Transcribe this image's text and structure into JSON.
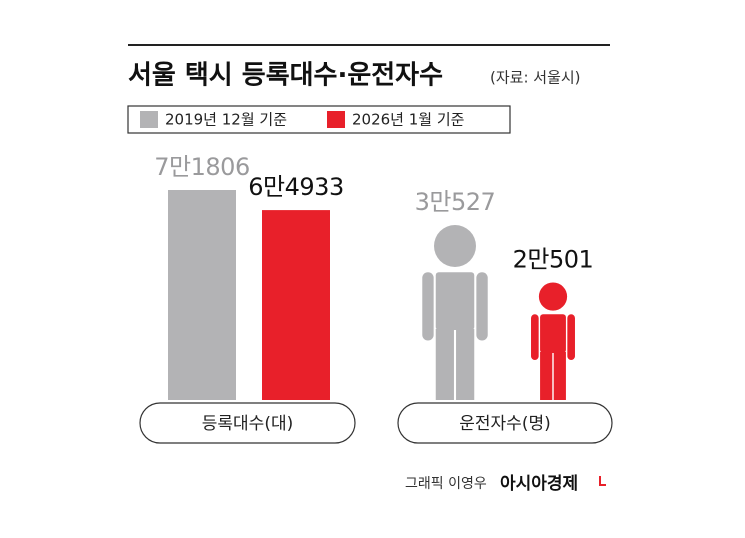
{
  "title": "서울 택시 등록대수·운전자수",
  "source": "(자료: 서울시)",
  "credit": "그래픽 이영우",
  "brand": "아시아경제",
  "chart_data": [
    {
      "type": "bar",
      "categories": [
        "등록대수(대)"
      ],
      "series": [
        {
          "name": "2019년 12월 기준",
          "color": "#b3b3b5",
          "values": [
            71806
          ],
          "value_labels": [
            "7만1806"
          ]
        },
        {
          "name": "2026년 1월 기준",
          "color": "#e8202a",
          "values": [
            64933
          ],
          "value_labels": [
            "6만4933"
          ]
        }
      ]
    },
    {
      "type": "pictogram",
      "categories": [
        "운전자수(명)"
      ],
      "series": [
        {
          "name": "2019년 12월 기준",
          "color": "#b3b3b5",
          "values": [
            30527
          ],
          "value_labels": [
            "3만527"
          ]
        },
        {
          "name": "2026년 1월 기준",
          "color": "#e8202a",
          "values": [
            20501
          ],
          "value_labels": [
            "2만501"
          ]
        }
      ]
    }
  ]
}
